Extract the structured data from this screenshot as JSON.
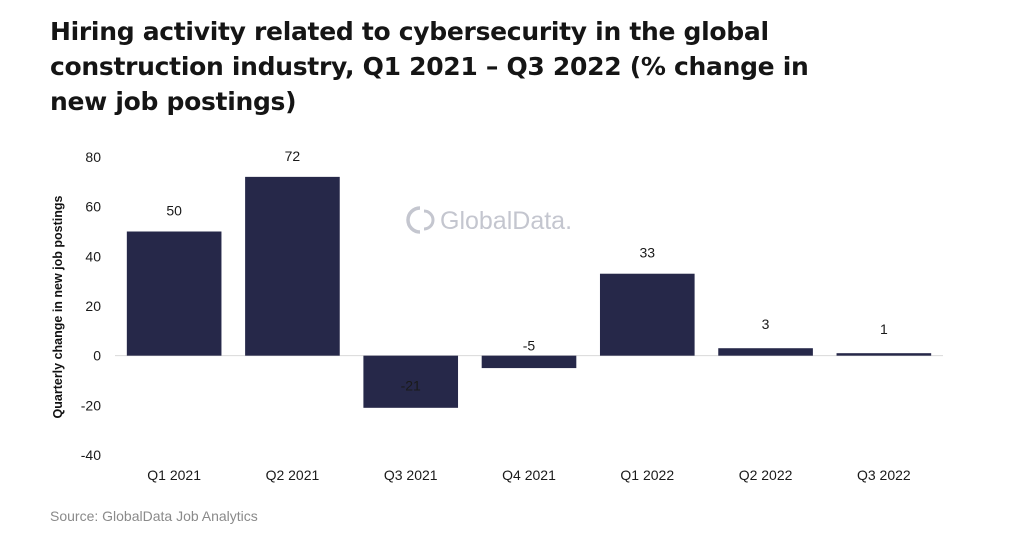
{
  "title": "Hiring activity related to cybersecurity in the global construction industry, Q1 2021 – Q3 2022 (% change in new job postings)",
  "source": "Source: GlobalData Job Analytics",
  "watermark": "GlobalData.",
  "colors": {
    "bar": "#262849",
    "zero_line": "#d9d9d9",
    "watermark": "#c4c6cf"
  },
  "chart_data": {
    "type": "bar",
    "title": "Hiring activity related to cybersecurity in the global construction industry, Q1 2021 – Q3 2022 (% change in new job postings)",
    "xlabel": "",
    "ylabel": "Quarterly change in new job postings",
    "categories": [
      "Q1 2021",
      "Q2 2021",
      "Q3 2021",
      "Q4 2021",
      "Q1 2022",
      "Q2 2022",
      "Q3 2022"
    ],
    "values": [
      50,
      72,
      -21,
      -5,
      33,
      3,
      1
    ],
    "ylim": [
      -40,
      80
    ],
    "yticks": [
      80,
      60,
      40,
      20,
      0,
      -20,
      -40
    ],
    "grid": false,
    "legend": "none"
  }
}
